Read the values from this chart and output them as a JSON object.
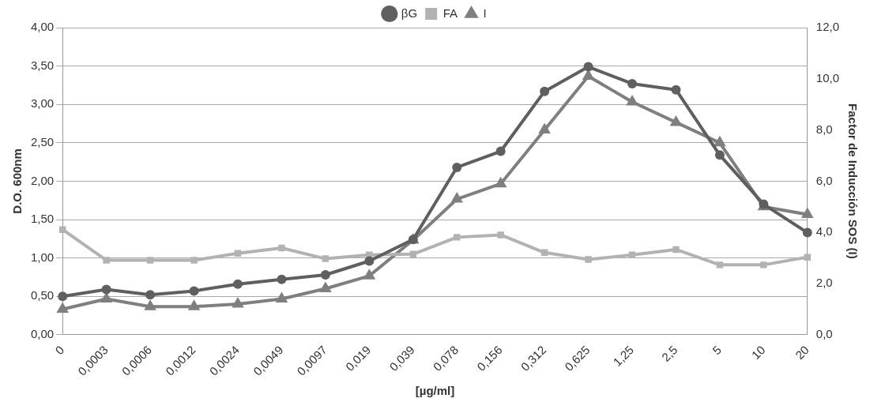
{
  "chart_data": {
    "type": "line",
    "xlabel": "[µg/ml]",
    "ylabel": "D.O. 600nm",
    "y2label": "Factor de Inducción SOS (I)",
    "categories": [
      "0",
      "0,0003",
      "0,0006",
      "0,0012",
      "0,0024",
      "0,0049",
      "0,0097",
      "0,019",
      "0,039",
      "0,078",
      "0,156",
      "0,312",
      "0,625",
      "1,25",
      "2,5",
      "5",
      "10",
      "20"
    ],
    "series": [
      {
        "name": "βG",
        "color": "#5f5f5f",
        "marker": "circle",
        "values": [
          0.5,
          0.59,
          0.52,
          0.57,
          0.66,
          0.72,
          0.78,
          0.96,
          1.24,
          2.18,
          2.39,
          3.17,
          3.49,
          3.27,
          3.19,
          2.34,
          1.7,
          1.33
        ]
      },
      {
        "name": "FA",
        "color": "#b2b2b2",
        "marker": "square",
        "values": [
          1.37,
          0.97,
          0.97,
          0.97,
          1.06,
          1.13,
          0.99,
          1.04,
          1.05,
          1.27,
          1.3,
          1.07,
          0.98,
          1.04,
          1.11,
          0.91,
          0.91,
          1.01
        ]
      },
      {
        "name": "I",
        "color": "#7f7f7f",
        "marker": "triangle",
        "axis": "y2",
        "values": [
          1.0,
          1.4,
          1.1,
          1.1,
          1.2,
          1.4,
          1.8,
          2.3,
          3.7,
          5.3,
          5.9,
          8.0,
          10.1,
          9.1,
          8.3,
          7.5,
          5.0,
          4.7
        ]
      }
    ],
    "ylim": [
      0,
      4
    ],
    "yticks": [
      {
        "value": 0,
        "label": "0,00"
      },
      {
        "value": 0.5,
        "label": "0,50"
      },
      {
        "value": 1,
        "label": "1,00"
      },
      {
        "value": 1.5,
        "label": "1,50"
      },
      {
        "value": 2,
        "label": "2,00"
      },
      {
        "value": 2.5,
        "label": "2,50"
      },
      {
        "value": 3,
        "label": "3,00"
      },
      {
        "value": 3.5,
        "label": "3,50"
      },
      {
        "value": 4,
        "label": "4,00"
      }
    ],
    "y2lim": [
      0,
      12
    ],
    "y2ticks": [
      {
        "value": 0,
        "label": "0,0"
      },
      {
        "value": 2,
        "label": "2,0"
      },
      {
        "value": 4,
        "label": "4,0"
      },
      {
        "value": 6,
        "label": "6,0"
      },
      {
        "value": 8,
        "label": "8,0"
      },
      {
        "value": 10,
        "label": "10,0"
      },
      {
        "value": 12,
        "label": "12,0"
      }
    ],
    "grid": "y",
    "legend": "top",
    "line_style": "solid"
  }
}
